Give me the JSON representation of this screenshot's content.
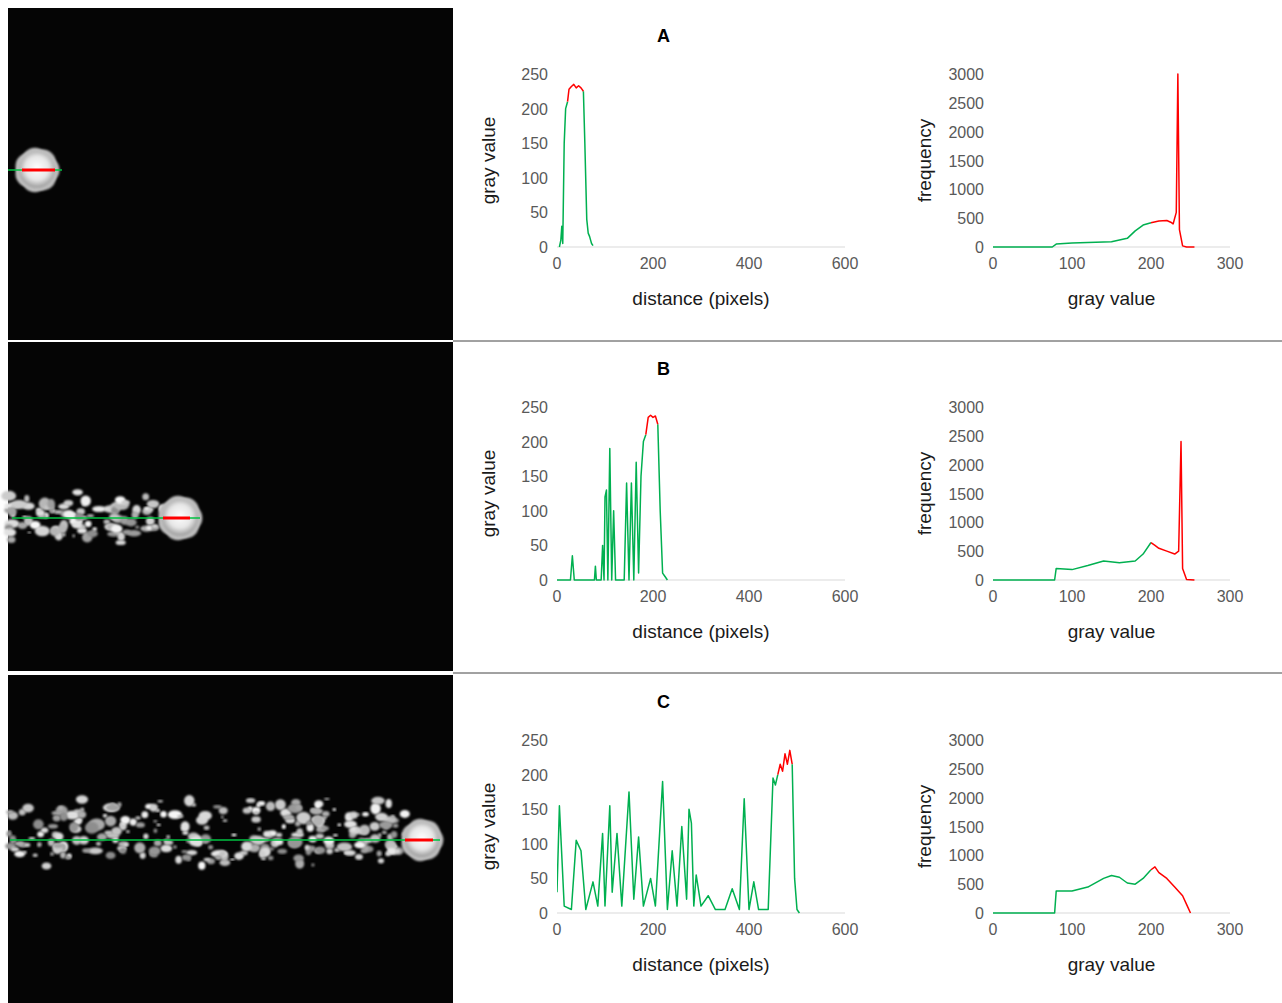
{
  "chart_data": [
    {
      "type": "line",
      "title": "A",
      "xlabel": "distance (pixels)",
      "ylabel": "gray value",
      "xlim": [
        0,
        600
      ],
      "xticks": [
        0,
        200,
        400,
        600
      ],
      "ylim": [
        0,
        250
      ],
      "yticks": [
        0,
        50,
        100,
        150,
        200,
        250
      ],
      "x": [
        5,
        8,
        10,
        12,
        15,
        18,
        22,
        25,
        30,
        35,
        40,
        45,
        50,
        55,
        58,
        62,
        65,
        68,
        70,
        72,
        75
      ],
      "series": [
        {
          "color": "#00b050",
          "values": [
            0,
            10,
            30,
            5,
            150,
            200,
            210,
            null,
            null,
            null,
            null,
            null,
            null,
            225,
            150,
            40,
            20,
            15,
            10,
            5,
            2
          ]
        },
        {
          "color": "#ff0000",
          "values": [
            null,
            null,
            null,
            null,
            null,
            null,
            210,
            228,
            232,
            235,
            230,
            233,
            230,
            225,
            null,
            null,
            null,
            null,
            null,
            null,
            null
          ]
        }
      ]
    },
    {
      "type": "line",
      "xlabel": "gray value",
      "ylabel": "frequency",
      "xlim": [
        0,
        300
      ],
      "xticks": [
        0,
        100,
        200,
        300
      ],
      "ylim": [
        0,
        3000
      ],
      "yticks": [
        0,
        500,
        1000,
        1500,
        2000,
        2500,
        3000
      ],
      "x": [
        0,
        75,
        80,
        100,
        120,
        150,
        170,
        180,
        190,
        200,
        210,
        220,
        225,
        228,
        232,
        234,
        236,
        240,
        245,
        255
      ],
      "series": [
        {
          "color": "#00b050",
          "values": [
            0,
            0,
            50,
            70,
            80,
            90,
            150,
            280,
            380,
            420,
            null,
            null,
            null,
            null,
            null,
            null,
            null,
            null,
            null,
            null
          ]
        },
        {
          "color": "#ff0000",
          "values": [
            null,
            null,
            null,
            null,
            null,
            null,
            null,
            null,
            null,
            420,
            450,
            460,
            430,
            400,
            600,
            3000,
            300,
            20,
            0,
            0
          ]
        }
      ]
    },
    {
      "type": "line",
      "title": "B",
      "xlabel": "distance (pixels)",
      "ylabel": "gray value",
      "xlim": [
        0,
        600
      ],
      "xticks": [
        0,
        200,
        400,
        600
      ],
      "ylim": [
        0,
        250
      ],
      "yticks": [
        0,
        50,
        100,
        150,
        200,
        250
      ],
      "x": [
        0,
        28,
        32,
        36,
        78,
        80,
        82,
        92,
        95,
        98,
        100,
        103,
        106,
        110,
        114,
        118,
        122,
        140,
        145,
        150,
        155,
        160,
        165,
        170,
        175,
        180,
        185,
        190,
        195,
        200,
        205,
        210,
        215,
        220,
        225,
        230
      ],
      "series": [
        {
          "color": "#00b050",
          "values": [
            0,
            0,
            35,
            0,
            0,
            20,
            0,
            0,
            50,
            0,
            120,
            130,
            0,
            190,
            0,
            100,
            0,
            0,
            140,
            0,
            140,
            0,
            170,
            10,
            150,
            200,
            210,
            null,
            null,
            null,
            null,
            225,
            100,
            10,
            5,
            0
          ]
        },
        {
          "color": "#ff0000",
          "values": [
            null,
            null,
            null,
            null,
            null,
            null,
            null,
            null,
            null,
            null,
            null,
            null,
            null,
            null,
            null,
            null,
            null,
            null,
            null,
            null,
            null,
            null,
            null,
            null,
            null,
            null,
            210,
            235,
            238,
            235,
            237,
            225,
            null,
            null,
            null,
            null
          ]
        }
      ]
    },
    {
      "type": "line",
      "xlabel": "gray value",
      "ylabel": "frequency",
      "xlim": [
        0,
        300
      ],
      "xticks": [
        0,
        100,
        200,
        300
      ],
      "ylim": [
        0,
        3000
      ],
      "yticks": [
        0,
        500,
        1000,
        1500,
        2000,
        2500,
        3000
      ],
      "x": [
        0,
        78,
        80,
        100,
        120,
        140,
        160,
        180,
        190,
        200,
        205,
        210,
        220,
        230,
        235,
        238,
        240,
        245,
        255
      ],
      "series": [
        {
          "color": "#00b050",
          "values": [
            0,
            0,
            200,
            180,
            250,
            330,
            300,
            330,
            450,
            650,
            null,
            null,
            null,
            null,
            null,
            null,
            null,
            null,
            null
          ]
        },
        {
          "color": "#ff0000",
          "values": [
            null,
            null,
            null,
            null,
            null,
            null,
            null,
            null,
            null,
            650,
            600,
            550,
            500,
            450,
            500,
            2400,
            200,
            10,
            0
          ]
        }
      ]
    },
    {
      "type": "line",
      "title": "C",
      "xlabel": "distance (pixels)",
      "ylabel": "gray value",
      "xlim": [
        0,
        600
      ],
      "xticks": [
        0,
        200,
        400,
        600
      ],
      "ylim": [
        0,
        250
      ],
      "yticks": [
        0,
        50,
        100,
        150,
        200,
        250
      ],
      "x": [
        0,
        5,
        15,
        30,
        40,
        50,
        60,
        75,
        85,
        95,
        100,
        110,
        115,
        125,
        135,
        150,
        160,
        170,
        180,
        195,
        205,
        220,
        230,
        240,
        250,
        260,
        270,
        275,
        280,
        285,
        290,
        300,
        315,
        330,
        350,
        365,
        380,
        390,
        400,
        410,
        420,
        440,
        450,
        455,
        460,
        465,
        470,
        475,
        480,
        485,
        490,
        495,
        500,
        505
      ],
      "series": [
        {
          "color": "#00b050",
          "values": [
            30,
            155,
            10,
            5,
            105,
            90,
            5,
            45,
            10,
            115,
            10,
            155,
            30,
            115,
            10,
            175,
            20,
            110,
            10,
            50,
            10,
            190,
            5,
            90,
            10,
            125,
            20,
            150,
            130,
            10,
            55,
            10,
            25,
            5,
            5,
            35,
            5,
            165,
            5,
            45,
            5,
            5,
            195,
            185,
            200,
            null,
            null,
            null,
            null,
            null,
            215,
            50,
            5,
            0
          ]
        },
        {
          "color": "#ff0000",
          "values": [
            null,
            null,
            null,
            null,
            null,
            null,
            null,
            null,
            null,
            null,
            null,
            null,
            null,
            null,
            null,
            null,
            null,
            null,
            null,
            null,
            null,
            null,
            null,
            null,
            null,
            null,
            null,
            null,
            null,
            null,
            null,
            null,
            null,
            null,
            null,
            null,
            null,
            null,
            null,
            null,
            null,
            null,
            null,
            null,
            200,
            215,
            205,
            230,
            215,
            235,
            215,
            null,
            null,
            null
          ]
        }
      ]
    },
    {
      "type": "line",
      "xlabel": "gray value",
      "ylabel": "frequency",
      "xlim": [
        0,
        300
      ],
      "xticks": [
        0,
        100,
        200,
        300
      ],
      "ylim": [
        0,
        3000
      ],
      "yticks": [
        0,
        500,
        1000,
        1500,
        2000,
        2500,
        3000
      ],
      "x": [
        0,
        78,
        80,
        100,
        120,
        140,
        150,
        160,
        170,
        180,
        190,
        200,
        205,
        210,
        220,
        230,
        240,
        245,
        250
      ],
      "series": [
        {
          "color": "#00b050",
          "values": [
            0,
            0,
            380,
            380,
            450,
            600,
            650,
            620,
            520,
            500,
            600,
            750,
            null,
            null,
            null,
            null,
            null,
            null,
            null
          ]
        },
        {
          "color": "#ff0000",
          "values": [
            null,
            null,
            null,
            null,
            null,
            null,
            null,
            null,
            null,
            null,
            null,
            750,
            800,
            700,
            600,
            450,
            300,
            150,
            0
          ]
        }
      ]
    }
  ]
}
